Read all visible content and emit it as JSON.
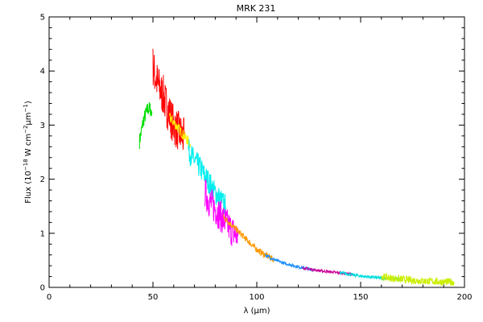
{
  "chart_data": {
    "type": "line",
    "title": "MRK 231",
    "xlabel": "λ (μm)",
    "ylabel": "Flux (10−18 W cm−2 μm−1)",
    "ylabel_parts": {
      "prefix": "Flux (10",
      "exp1": "−18",
      "mid": " W cm",
      "exp2": "−2",
      "mu": "μm",
      "exp3": "−1",
      "suffix": ")"
    },
    "xlim": [
      0,
      200
    ],
    "ylim": [
      0,
      5
    ],
    "x_ticks": [
      0,
      50,
      100,
      150,
      200
    ],
    "y_ticks": [
      0,
      1,
      2,
      3,
      4,
      5
    ],
    "grid": false,
    "series": [
      {
        "color": "#00dd00",
        "noise": 0.14,
        "x": [
          43.5,
          44.5,
          45.5,
          46.5,
          47.5,
          48.5,
          49.5
        ],
        "y": [
          2.7,
          2.9,
          3.1,
          3.2,
          3.3,
          3.3,
          3.25
        ]
      },
      {
        "color": "#ff0000",
        "noise": 0.38,
        "x": [
          50,
          51,
          52,
          53,
          54,
          55,
          56,
          57,
          58,
          59,
          60,
          61,
          62,
          63,
          64,
          65
        ],
        "y": [
          4.1,
          3.9,
          3.8,
          3.7,
          3.6,
          3.55,
          3.4,
          3.3,
          3.2,
          3.1,
          3.0,
          2.95,
          2.9,
          2.85,
          2.8,
          2.75
        ]
      },
      {
        "color": "#ffee00",
        "noise": 0.1,
        "x": [
          58,
          60,
          62,
          64,
          66,
          68
        ],
        "y": [
          3.15,
          3.05,
          2.95,
          2.85,
          2.75,
          2.65
        ]
      },
      {
        "color": "#00eeee",
        "noise": 0.22,
        "x": [
          67,
          69,
          71,
          73,
          75,
          77,
          79,
          81,
          83,
          85
        ],
        "y": [
          2.55,
          2.4,
          2.3,
          2.2,
          2.05,
          1.95,
          1.8,
          1.7,
          1.6,
          1.5
        ]
      },
      {
        "color": "#ff00ff",
        "noise": 0.3,
        "x": [
          75,
          77,
          79,
          81,
          83,
          85,
          87,
          89,
          91
        ],
        "y": [
          1.75,
          1.6,
          1.5,
          1.4,
          1.3,
          1.2,
          1.1,
          1.0,
          0.95
        ]
      },
      {
        "color": "#ff9900",
        "noise": 0.06,
        "x": [
          84,
          88,
          92,
          96,
          100,
          104,
          108
        ],
        "y": [
          1.3,
          1.15,
          1.0,
          0.85,
          0.7,
          0.6,
          0.52
        ]
      },
      {
        "color": "#1e90ff",
        "noise": 0.03,
        "x": [
          104,
          108,
          112,
          116,
          120,
          124,
          128
        ],
        "y": [
          0.6,
          0.52,
          0.46,
          0.42,
          0.38,
          0.35,
          0.32
        ]
      },
      {
        "color": "#cc0099",
        "noise": 0.025,
        "x": [
          122,
          127,
          132,
          137,
          142,
          146
        ],
        "y": [
          0.36,
          0.33,
          0.3,
          0.28,
          0.26,
          0.24
        ]
      },
      {
        "color": "#00dddd",
        "noise": 0.03,
        "x": [
          140,
          145,
          150,
          155,
          160,
          165,
          170
        ],
        "y": [
          0.27,
          0.24,
          0.21,
          0.19,
          0.17,
          0.16,
          0.15
        ]
      },
      {
        "color": "#ccee00",
        "noise": 0.07,
        "x": [
          160,
          165,
          170,
          175,
          180,
          185,
          190,
          195
        ],
        "y": [
          0.2,
          0.17,
          0.15,
          0.13,
          0.12,
          0.11,
          0.1,
          0.1
        ]
      }
    ]
  }
}
